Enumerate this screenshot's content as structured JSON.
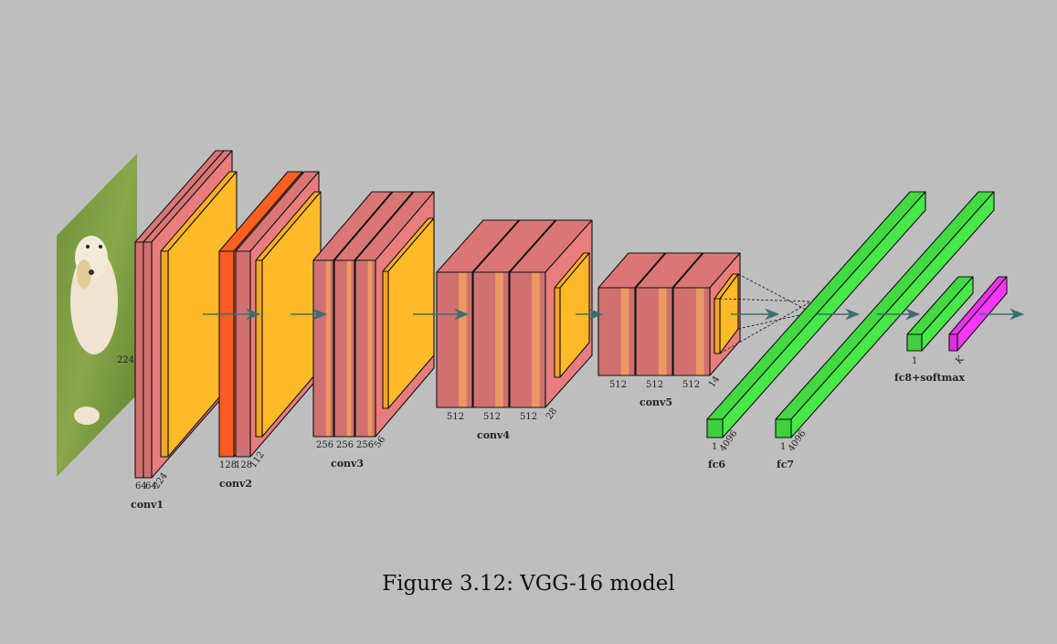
{
  "figure": {
    "caption": "Figure 3.12: VGG-16 model"
  },
  "input_image": {
    "description_icon": "dog-photo-icon",
    "size_label": "224"
  },
  "blocks": {
    "conv1": {
      "name": "conv1",
      "channels": [
        "64",
        "64"
      ],
      "spatial": "224"
    },
    "conv2": {
      "name": "conv2",
      "channels": [
        "128",
        "128"
      ],
      "spatial": "112"
    },
    "conv3": {
      "name": "conv3",
      "channels": [
        "256",
        "256",
        "256"
      ],
      "spatial": "56"
    },
    "conv4": {
      "name": "conv4",
      "channels": [
        "512",
        "512",
        "512"
      ],
      "spatial": "28"
    },
    "conv5": {
      "name": "conv5",
      "channels": [
        "512",
        "512",
        "512"
      ],
      "spatial": "14"
    },
    "fc6": {
      "name": "fc6",
      "depth": "1",
      "units": "4096"
    },
    "fc7": {
      "name": "fc7",
      "depth": "1",
      "units": "4096"
    },
    "fc8": {
      "name": "fc8+softmax",
      "depth": "1",
      "units": "K"
    }
  },
  "colors": {
    "background": "#bebebe",
    "conv": "#d07070",
    "conv_stripe": "#f0a060",
    "pool": "#f5a623",
    "pool_conv2": "#ff5a1f",
    "fc": "#3fcf3f",
    "softmax": "#e030e0",
    "arrow": "#3c6e6e"
  }
}
